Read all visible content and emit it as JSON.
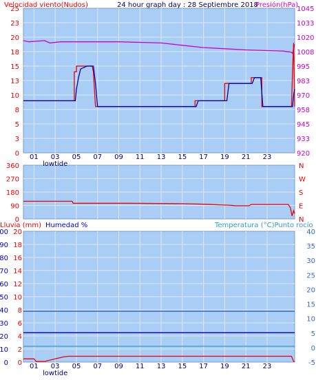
{
  "header": {
    "left_title": "Velocidad viento(Nudos)",
    "center_title": "24 hour graph day : 28 Septiembre 2018",
    "right_title": "Presión(hPa)"
  },
  "bottom_header": {
    "left1": "Lluvia (mm)",
    "left2": "Humedad %",
    "right": "Temperatura (°C)Punto rocío"
  },
  "colors": {
    "plot_bg": "#a9cdf5",
    "grid": "#d9e8f8",
    "wind_avg": "#0000aa",
    "wind_gust": "#ee0000",
    "pressure": "#cc00cc",
    "direction": "#ee0000",
    "rain": "#ee0000",
    "humidity": "#0000aa",
    "temperature": "#3399cc",
    "dewpoint": "#2255bb",
    "left_axis": "#ee0000",
    "hum_axis": "#0000cc",
    "temp_axis": "#3366cc"
  },
  "x_axis": {
    "ticks": [
      "01",
      "03",
      "05",
      "07",
      "09",
      "11",
      "13",
      "15",
      "17",
      "19",
      "21",
      "23"
    ],
    "note": "lowtide"
  },
  "chart_data": [
    {
      "type": "line",
      "title": "24 hour graph day : 28 Septiembre 2018",
      "ylabel": "Velocidad viento(Nudos)",
      "y2label": "Presión(hPa)",
      "y_ticks": [
        "0",
        "3",
        "5",
        "8",
        "10",
        "13",
        "15",
        "18",
        "20",
        "23",
        "25"
      ],
      "y2_ticks": [
        "920",
        "933",
        "945",
        "958",
        "970",
        "983",
        "995",
        "1008",
        "1020",
        "1033",
        "1045"
      ],
      "ylim": [
        0,
        25
      ],
      "y2lim": [
        920,
        1045
      ],
      "series": [
        {
          "name": "wind_avg",
          "x": [
            0,
            4.9,
            5.0,
            5.2,
            5.4,
            6.0,
            6.6,
            6.8,
            7.0,
            16.3,
            16.5,
            19.2,
            19.4,
            21.6,
            21.8,
            22.4,
            22.6,
            25.4,
            25.5,
            25.6
          ],
          "y": [
            9,
            9,
            11,
            13,
            14.5,
            15,
            15,
            12,
            8,
            8,
            9,
            9,
            12,
            12,
            13,
            13,
            8,
            8,
            10,
            11
          ]
        },
        {
          "name": "wind_gust",
          "x": [
            0,
            4.8,
            4.8,
            5.0,
            5.0,
            6.5,
            6.6,
            6.8,
            16.2,
            16.2,
            19.0,
            19.0,
            21.5,
            21.5,
            22.5,
            22.5,
            25.3,
            25.4,
            25.5,
            25.6
          ],
          "y": [
            9,
            9,
            14,
            14,
            15,
            15,
            14,
            8,
            8,
            9,
            9,
            12,
            12,
            13,
            13,
            8,
            8,
            14,
            19,
            8
          ]
        },
        {
          "name": "pressure",
          "x": [
            0,
            0.5,
            2.0,
            2.5,
            3.5,
            4.0,
            9.0,
            13.0,
            15.0,
            17.0,
            19.0,
            21.0,
            24.5,
            25.3,
            25.4,
            25.5,
            25.6
          ],
          "y": [
            1017,
            1016,
            1017,
            1015,
            1016,
            1016,
            1016,
            1015,
            1013,
            1011,
            1010,
            1009,
            1008,
            1007,
            1006,
            1010,
            1014
          ]
        }
      ]
    },
    {
      "type": "line",
      "ylabel": "N W S E N",
      "y_ticks": [
        "0",
        "90",
        "180",
        "270",
        "360"
      ],
      "y2_ticks": [
        "N",
        "E",
        "S",
        "W",
        "N"
      ],
      "ylim": [
        0,
        360
      ],
      "series": [
        {
          "name": "wind_direction",
          "x": [
            0,
            4.6,
            4.7,
            10.0,
            15.0,
            17.5,
            18.5,
            19.5,
            20.0,
            21.3,
            21.5,
            25.0,
            25.2,
            25.35,
            25.5,
            25.6
          ],
          "y": [
            118,
            118,
            105,
            105,
            102,
            98,
            94,
            92,
            88,
            88,
            97,
            97,
            75,
            20,
            55,
            35
          ]
        }
      ]
    },
    {
      "type": "line",
      "ylabel": "Lluvia (mm)",
      "y2label": "Temperatura (°C)Punto rocío",
      "y_ticks": [
        "0",
        "2",
        "4",
        "6",
        "8",
        "10",
        "12",
        "14",
        "16",
        "18",
        "20"
      ],
      "hum_ticks": [
        "0",
        "10",
        "20",
        "30",
        "40",
        "50",
        "60",
        "70",
        "80",
        "90",
        "100"
      ],
      "y2_ticks": [
        "-5",
        "0",
        "5",
        "10",
        "15",
        "20",
        "25",
        "30",
        "35",
        "40"
      ],
      "ylim": [
        0,
        20
      ],
      "humlim": [
        0,
        100
      ],
      "y2lim": [
        -5,
        40
      ],
      "series": [
        {
          "name": "rain",
          "x": [
            0,
            1.0,
            1.2,
            2.0,
            2.5,
            3.0,
            3.8,
            4.3,
            25.3,
            25.5,
            25.6
          ],
          "y": [
            0.5,
            0.5,
            0.1,
            0.1,
            0.3,
            0.5,
            0.8,
            0.9,
            0.9,
            0.1,
            0.1
          ]
        },
        {
          "name": "humidity",
          "x": [
            0,
            25.6
          ],
          "y": [
            22.5,
            22.5
          ]
        },
        {
          "name": "temperature",
          "x": [
            0,
            25.6
          ],
          "y": [
            0.45,
            0.45
          ]
        },
        {
          "name": "dewpoint",
          "x": [
            0,
            25.6
          ],
          "y": [
            12.5,
            12.5
          ]
        }
      ]
    }
  ]
}
